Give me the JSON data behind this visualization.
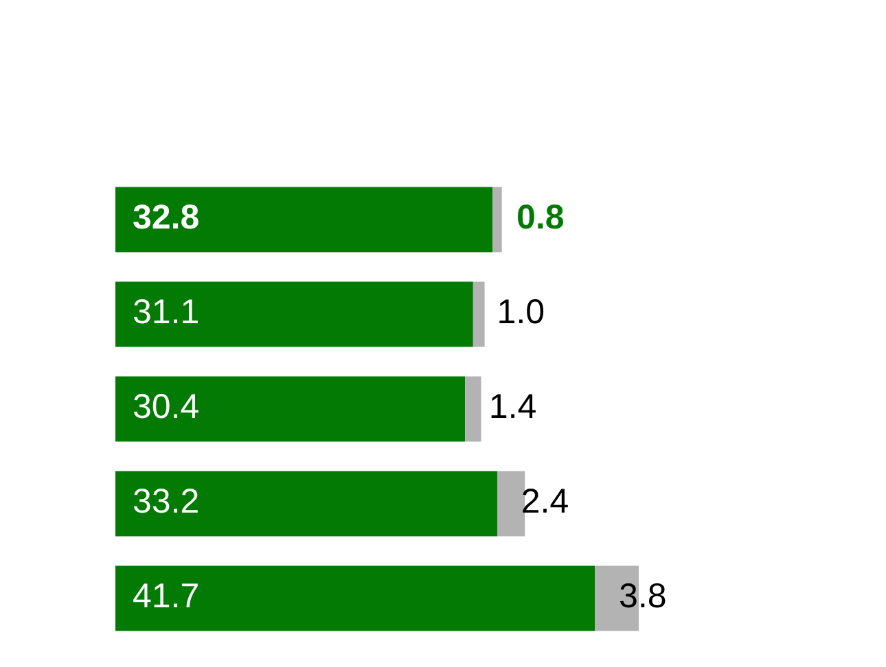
{
  "chart_data": {
    "type": "bar",
    "orientation": "horizontal",
    "stacked": true,
    "categories": [
      null,
      null,
      null,
      null,
      null
    ],
    "series": [
      {
        "color": "#037a03",
        "values": [
          32.8,
          31.1,
          30.4,
          33.2,
          41.7
        ],
        "value_labels": [
          "32.8",
          "31.1",
          "30.4",
          "33.2",
          "41.7"
        ]
      },
      {
        "color": "#b3b3b3",
        "values": [
          0.8,
          1.0,
          1.4,
          2.4,
          3.8
        ],
        "value_labels": [
          "0.8",
          "1.0",
          "1.4",
          "2.4",
          "3.8"
        ]
      }
    ],
    "tick_labels": false
  }
}
